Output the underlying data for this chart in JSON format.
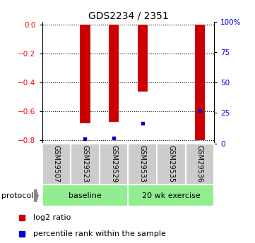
{
  "title": "GDS2234 / 2351",
  "samples": [
    "GSM29507",
    "GSM29523",
    "GSM29529",
    "GSM29533",
    "GSM29535",
    "GSM29536"
  ],
  "log2_ratios": [
    0.0,
    -0.68,
    -0.67,
    -0.46,
    0.0,
    -0.8
  ],
  "percentile_rank_values": [
    null,
    -0.79,
    -0.785,
    -0.68,
    null,
    -0.595
  ],
  "bar_color": "#CC0000",
  "dot_color": "#0000CC",
  "ylim": [
    -0.82,
    0.02
  ],
  "left_ticks": [
    0,
    -0.2,
    -0.4,
    -0.6,
    -0.8
  ],
  "right_ticks": [
    0,
    25,
    50,
    75,
    100
  ],
  "right_tick_labels": [
    "0",
    "25",
    "50",
    "75",
    "100%"
  ],
  "background": "#ffffff"
}
